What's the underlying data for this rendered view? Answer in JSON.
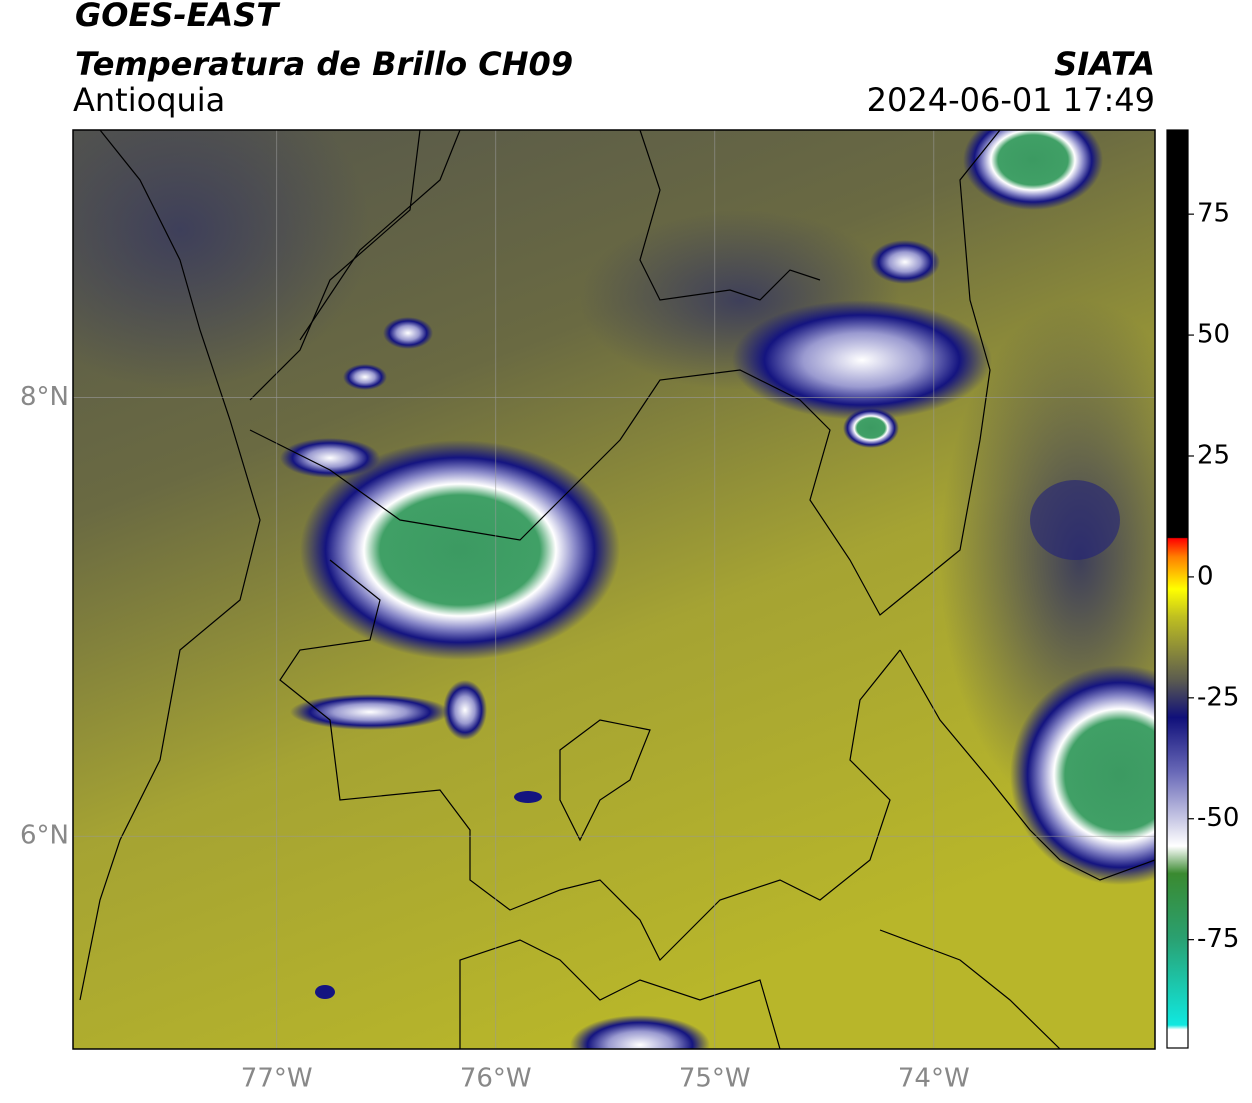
{
  "header": {
    "title": "GOES-EAST",
    "product": "Temperatura de Brillo CH09",
    "region": "Antioquia",
    "agency": "SIATA",
    "datetime": "2024-06-01 17:49"
  },
  "map": {
    "xlim": [
      -77.93,
      -72.99
    ],
    "ylim": [
      5.03,
      9.22
    ],
    "xticks": [
      {
        "value": -77,
        "label": "77°W"
      },
      {
        "value": -76,
        "label": "76°W"
      },
      {
        "value": -75,
        "label": "75°W"
      },
      {
        "value": -74,
        "label": "74°W"
      }
    ],
    "yticks": [
      {
        "value": 6,
        "label": "6°N"
      },
      {
        "value": 8,
        "label": "8°N"
      }
    ],
    "grid": true
  },
  "colorbar": {
    "lim": [
      -97.4,
      92.4
    ],
    "ticks": [
      -75,
      -50,
      -25,
      0,
      25,
      50,
      75
    ]
  }
}
